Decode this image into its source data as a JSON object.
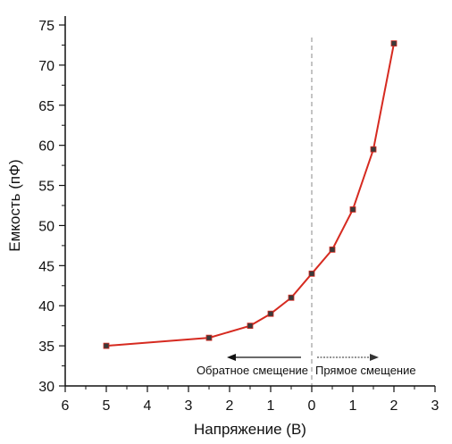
{
  "chart_data": {
    "type": "line",
    "xlabel": "Напряжение (В)",
    "ylabel": "Емкость (пФ)",
    "x_tick_labels": [
      "6",
      "5",
      "4",
      "3",
      "2",
      "1",
      "0",
      "1",
      "2",
      "3"
    ],
    "xlim": [
      -6,
      3
    ],
    "ylim": [
      30,
      75
    ],
    "y_ticks": [
      30,
      35,
      40,
      45,
      50,
      55,
      60,
      65,
      70,
      75
    ],
    "series": [
      {
        "x": [
          -5,
          -2.5,
          -1.5,
          -1,
          -0.5,
          0,
          0.5,
          1,
          1.5,
          2
        ],
        "y": [
          35,
          36,
          37.5,
          39,
          41,
          44,
          47,
          52,
          59.5,
          72.7
        ]
      }
    ],
    "annotations": {
      "reverse": "Обратное смещение",
      "forward": "Прямое смещение"
    },
    "colors": {
      "line": "#d62a20",
      "marker": "#3a3a3a",
      "divider": "#888888"
    }
  }
}
